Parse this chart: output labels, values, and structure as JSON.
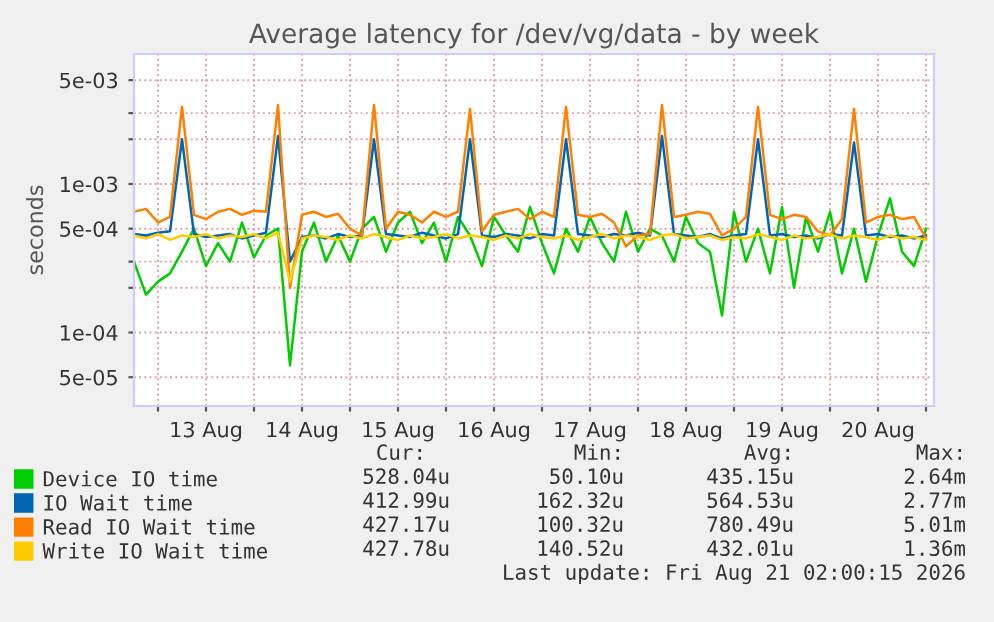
{
  "chart_data": {
    "type": "line",
    "title": "Average latency for /dev/vg/data - by week",
    "ylabel": "seconds",
    "log": "y",
    "grid": true,
    "legend": "bottom left",
    "marker": "none",
    "line_style": "solid",
    "xlim": [
      "2026-08-12T18:00",
      "2026-08-21T02:00"
    ],
    "xticks": [
      {
        "value": "2026-08-13T00:00",
        "label": null
      },
      {
        "value": "2026-08-13T12:00",
        "label": "13 Aug"
      },
      {
        "value": "2026-08-14T00:00",
        "label": null
      },
      {
        "value": "2026-08-14T12:00",
        "label": "14 Aug"
      },
      {
        "value": "2026-08-15T00:00",
        "label": null
      },
      {
        "value": "2026-08-15T12:00",
        "label": "15 Aug"
      },
      {
        "value": "2026-08-16T00:00",
        "label": null
      },
      {
        "value": "2026-08-16T12:00",
        "label": "16 Aug"
      },
      {
        "value": "2026-08-17T00:00",
        "label": null
      },
      {
        "value": "2026-08-17T12:00",
        "label": "17 Aug"
      },
      {
        "value": "2026-08-18T00:00",
        "label": null
      },
      {
        "value": "2026-08-18T12:00",
        "label": "18 Aug"
      },
      {
        "value": "2026-08-19T00:00",
        "label": null
      },
      {
        "value": "2026-08-19T12:00",
        "label": "19 Aug"
      },
      {
        "value": "2026-08-20T00:00",
        "label": null
      },
      {
        "value": "2026-08-20T12:00",
        "label": "20 Aug"
      },
      {
        "value": "2026-08-21T00:00",
        "label": null
      }
    ],
    "ylim": [
      3.2e-05,
      0.0075
    ],
    "yticks": [
      {
        "value": 5e-05,
        "label": "5e-05"
      },
      {
        "value": 0.0001,
        "label": "1e-04"
      },
      {
        "value": 0.0002,
        "label": null
      },
      {
        "value": 0.0003,
        "label": null
      },
      {
        "value": 0.0005,
        "label": "5e-04"
      },
      {
        "value": 0.001,
        "label": "1e-03"
      },
      {
        "value": 0.002,
        "label": null
      },
      {
        "value": 0.003,
        "label": null
      },
      {
        "value": 0.005,
        "label": "5e-03"
      }
    ],
    "x": [
      "2026-08-12T18:00",
      "2026-08-12T21:00",
      "2026-08-13T00:00",
      "2026-08-13T03:00",
      "2026-08-13T06:00",
      "2026-08-13T09:00",
      "2026-08-13T12:00",
      "2026-08-13T15:00",
      "2026-08-13T18:00",
      "2026-08-13T21:00",
      "2026-08-14T00:00",
      "2026-08-14T03:00",
      "2026-08-14T06:00",
      "2026-08-14T09:00",
      "2026-08-14T12:00",
      "2026-08-14T15:00",
      "2026-08-14T18:00",
      "2026-08-14T21:00",
      "2026-08-15T00:00",
      "2026-08-15T03:00",
      "2026-08-15T06:00",
      "2026-08-15T09:00",
      "2026-08-15T12:00",
      "2026-08-15T15:00",
      "2026-08-15T18:00",
      "2026-08-15T21:00",
      "2026-08-16T00:00",
      "2026-08-16T03:00",
      "2026-08-16T06:00",
      "2026-08-16T09:00",
      "2026-08-16T12:00",
      "2026-08-16T15:00",
      "2026-08-16T18:00",
      "2026-08-16T21:00",
      "2026-08-17T00:00",
      "2026-08-17T03:00",
      "2026-08-17T06:00",
      "2026-08-17T09:00",
      "2026-08-17T12:00",
      "2026-08-17T15:00",
      "2026-08-17T18:00",
      "2026-08-17T21:00",
      "2026-08-18T00:00",
      "2026-08-18T03:00",
      "2026-08-18T06:00",
      "2026-08-18T09:00",
      "2026-08-18T12:00",
      "2026-08-18T15:00",
      "2026-08-18T18:00",
      "2026-08-18T21:00",
      "2026-08-19T00:00",
      "2026-08-19T03:00",
      "2026-08-19T06:00",
      "2026-08-19T09:00",
      "2026-08-19T12:00",
      "2026-08-19T15:00",
      "2026-08-19T18:00",
      "2026-08-19T21:00",
      "2026-08-20T00:00",
      "2026-08-20T03:00",
      "2026-08-20T06:00",
      "2026-08-20T09:00",
      "2026-08-20T12:00",
      "2026-08-20T15:00",
      "2026-08-20T18:00",
      "2026-08-20T21:00",
      "2026-08-21T00:00"
    ],
    "series": [
      {
        "name": "Device IO time",
        "color": "#00cc00",
        "values": [
          0.0003,
          0.00018,
          0.00022,
          0.00025,
          0.00035,
          0.0005,
          0.00028,
          0.0004,
          0.0003,
          0.00055,
          0.00032,
          0.00045,
          0.0005,
          6e-05,
          0.00035,
          0.00055,
          0.0003,
          0.00045,
          0.0003,
          0.0005,
          0.0006,
          0.00035,
          0.00055,
          0.00065,
          0.0004,
          0.00055,
          0.0003,
          0.0006,
          0.00045,
          0.00028,
          0.0006,
          0.00045,
          0.00035,
          0.0007,
          0.0004,
          0.00025,
          0.0005,
          0.00035,
          0.0006,
          0.0004,
          0.0003,
          0.00065,
          0.00035,
          0.0005,
          0.00045,
          0.0003,
          0.0006,
          0.0004,
          0.00035,
          0.00013,
          0.00065,
          0.0003,
          0.0005,
          0.00025,
          0.0007,
          0.0002,
          0.0006,
          0.00035,
          0.00065,
          0.00025,
          0.0005,
          0.00022,
          0.00045,
          0.0008,
          0.00035,
          0.00028,
          0.0005
        ]
      },
      {
        "name": "IO Wait time",
        "color": "#0066b3",
        "values": [
          0.00046,
          0.00045,
          0.00047,
          0.00048,
          0.002,
          0.00046,
          0.00044,
          0.00045,
          0.00046,
          0.00043,
          0.00045,
          0.00047,
          0.0021,
          0.0003,
          0.00044,
          0.00045,
          0.00043,
          0.00046,
          0.00044,
          0.00045,
          0.002,
          0.00046,
          0.00045,
          0.00044,
          0.00047,
          0.00045,
          0.00043,
          0.00046,
          0.002,
          0.00045,
          0.00044,
          0.00046,
          0.00045,
          0.00043,
          0.00046,
          0.00045,
          0.002,
          0.00046,
          0.00045,
          0.00044,
          0.00046,
          0.00045,
          0.00047,
          0.00045,
          0.0021,
          0.00046,
          0.00045,
          0.00044,
          0.00046,
          0.00043,
          0.00045,
          0.00046,
          0.002,
          0.00045,
          0.00046,
          0.00044,
          0.00045,
          0.00043,
          0.00046,
          0.00045,
          0.0019,
          0.00045,
          0.00046,
          0.00044,
          0.00045,
          0.00043,
          0.00045
        ]
      },
      {
        "name": "Read IO Wait time",
        "color": "#ff8000",
        "values": [
          0.00065,
          0.00068,
          0.00055,
          0.0006,
          0.0033,
          0.00062,
          0.00058,
          0.00065,
          0.00068,
          0.00062,
          0.00066,
          0.00065,
          0.0034,
          0.0002,
          0.00062,
          0.00065,
          0.0006,
          0.00063,
          0.0005,
          0.00045,
          0.0034,
          0.0005,
          0.00065,
          0.00062,
          0.00055,
          0.00065,
          0.0006,
          0.00065,
          0.0032,
          0.00048,
          0.00062,
          0.00065,
          0.00068,
          0.00058,
          0.00065,
          0.0006,
          0.0033,
          0.00062,
          0.0006,
          0.00063,
          0.00055,
          0.00038,
          0.00045,
          0.00046,
          0.0034,
          0.0006,
          0.00062,
          0.00065,
          0.00063,
          0.00045,
          0.0005,
          0.0006,
          0.0033,
          0.00062,
          0.00058,
          0.00062,
          0.0006,
          0.00048,
          0.00045,
          0.00058,
          0.0032,
          0.00055,
          0.0006,
          0.00062,
          0.00058,
          0.0006,
          0.00043
        ]
      },
      {
        "name": "Write IO Wait time",
        "color": "#ffcc00",
        "values": [
          0.00045,
          0.00043,
          0.00046,
          0.00042,
          0.00045,
          0.00044,
          0.00046,
          0.00043,
          0.00045,
          0.00044,
          0.00046,
          0.00043,
          0.00047,
          0.00022,
          0.00043,
          0.00045,
          0.00044,
          0.00042,
          0.00045,
          0.00043,
          0.00046,
          0.00044,
          0.00042,
          0.00045,
          0.00043,
          0.00044,
          0.00046,
          0.00043,
          0.00045,
          0.00044,
          0.00042,
          0.00045,
          0.00043,
          0.00046,
          0.00044,
          0.00043,
          0.00045,
          0.00042,
          0.00044,
          0.00046,
          0.00043,
          0.00045,
          0.00044,
          0.00042,
          0.00045,
          0.00046,
          0.00043,
          0.00044,
          0.00045,
          0.00042,
          0.00044,
          0.00043,
          0.00046,
          0.00044,
          0.00042,
          0.00045,
          0.00043,
          0.00044,
          0.00046,
          0.00043,
          0.00045,
          0.00044,
          0.00042,
          0.00045,
          0.00043,
          0.00044,
          0.00042
        ]
      }
    ],
    "annotations": [
      "Cur:",
      "Min:",
      "Avg:",
      "Max:",
      "528.04u",
      "50.10u",
      "435.15u",
      "2.64m",
      "412.99u",
      "162.32u",
      "564.53u",
      "2.77m",
      "427.17u",
      "100.32u",
      "780.49u",
      "5.01m",
      "427.78u",
      "140.52u",
      "432.01u",
      "1.36m",
      "Last update: Fri Aug 21 02:00:15 2026"
    ]
  }
}
